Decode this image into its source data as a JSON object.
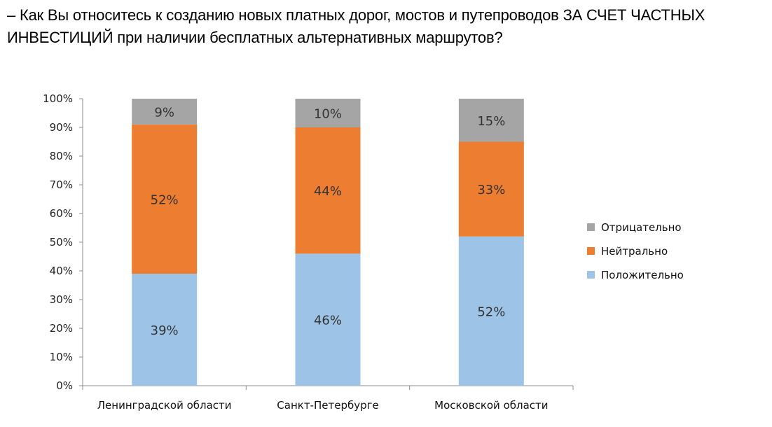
{
  "title": "– Как Вы относитесь к созданию новых платных дорог, мостов и путепроводов ЗА СЧЕТ ЧАСТНЫХ ИНВЕСТИЦИЙ при наличии бесплатных альтернативных маршрутов?",
  "chart_data": {
    "type": "bar",
    "stacked": true,
    "percent": true,
    "categories": [
      "Ленинградской области",
      "Санкт-Петербурге",
      "Московской области"
    ],
    "series": [
      {
        "name": "Положительно",
        "values": [
          39,
          46,
          52
        ],
        "labels": [
          "39%",
          "46%",
          "52%"
        ],
        "color": "#9DC3E6"
      },
      {
        "name": "Нейтрально",
        "values": [
          52,
          44,
          33
        ],
        "labels": [
          "52%",
          "44%",
          "33%"
        ],
        "color": "#ED7D31"
      },
      {
        "name": "Отрицательно",
        "values": [
          9,
          10,
          15
        ],
        "labels": [
          "9%",
          "10%",
          "15%"
        ],
        "color": "#A5A5A5"
      }
    ],
    "yticks": [
      "0%",
      "10%",
      "20%",
      "30%",
      "40%",
      "50%",
      "60%",
      "70%",
      "80%",
      "90%",
      "100%"
    ],
    "ylim": [
      0,
      100
    ],
    "legend_order": [
      "Отрицательно",
      "Нейтрально",
      "Положительно"
    ],
    "legend_position": "right",
    "grid": false,
    "xlabel": "",
    "ylabel": ""
  }
}
